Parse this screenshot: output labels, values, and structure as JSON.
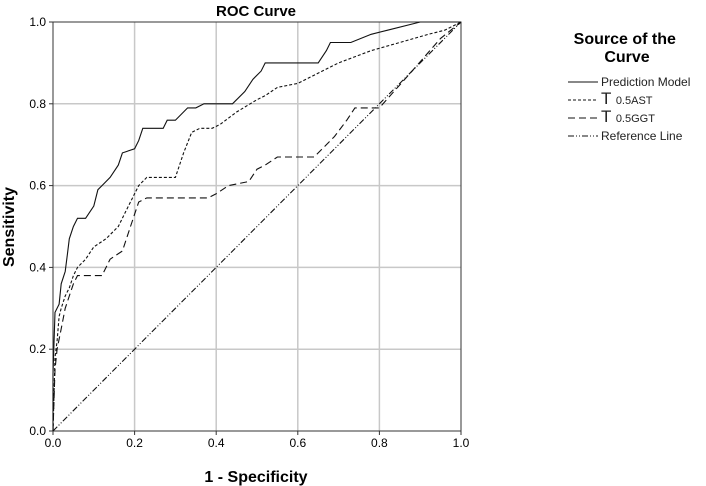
{
  "chart_data": {
    "type": "line",
    "title": "ROC Curve",
    "xlabel": "1 - Specificity",
    "ylabel": "Sensitivity",
    "xlim": [
      0,
      1
    ],
    "ylim": [
      0,
      1
    ],
    "x_ticks": [
      "0.0",
      "0.2",
      "0.4",
      "0.6",
      "0.8",
      "1.0"
    ],
    "y_ticks": [
      "0.0",
      "0.2",
      "0.4",
      "0.6",
      "0.8",
      "1.0"
    ],
    "grid": true,
    "legend": {
      "title": "Source of the Curve",
      "title_lines": [
        "Source of the",
        "Curve"
      ],
      "placement": "right"
    },
    "series": [
      {
        "name": "Prediction Model",
        "legend_main": "Prediction Model",
        "legend_sub": "",
        "dash": "solid",
        "points": [
          [
            0,
            0
          ],
          [
            0,
            0.14
          ],
          [
            0.005,
            0.29
          ],
          [
            0.015,
            0.31
          ],
          [
            0.02,
            0.36
          ],
          [
            0.03,
            0.39
          ],
          [
            0.035,
            0.43
          ],
          [
            0.04,
            0.47
          ],
          [
            0.05,
            0.5
          ],
          [
            0.06,
            0.52
          ],
          [
            0.08,
            0.52
          ],
          [
            0.1,
            0.55
          ],
          [
            0.11,
            0.59
          ],
          [
            0.12,
            0.6
          ],
          [
            0.14,
            0.62
          ],
          [
            0.16,
            0.65
          ],
          [
            0.17,
            0.68
          ],
          [
            0.2,
            0.69
          ],
          [
            0.21,
            0.71
          ],
          [
            0.22,
            0.74
          ],
          [
            0.27,
            0.74
          ],
          [
            0.28,
            0.76
          ],
          [
            0.3,
            0.76
          ],
          [
            0.33,
            0.79
          ],
          [
            0.35,
            0.79
          ],
          [
            0.37,
            0.8
          ],
          [
            0.44,
            0.8
          ],
          [
            0.47,
            0.83
          ],
          [
            0.49,
            0.86
          ],
          [
            0.51,
            0.88
          ],
          [
            0.52,
            0.9
          ],
          [
            0.65,
            0.9
          ],
          [
            0.67,
            0.93
          ],
          [
            0.68,
            0.95
          ],
          [
            0.73,
            0.95
          ],
          [
            0.78,
            0.97
          ],
          [
            0.82,
            0.98
          ],
          [
            0.9,
            1.0
          ],
          [
            1.0,
            1.0
          ]
        ]
      },
      {
        "name": "T 0.5AST",
        "legend_main": "T",
        "legend_sub": "0.5AST",
        "dash": "3,2",
        "points": [
          [
            0,
            0
          ],
          [
            0.005,
            0.18
          ],
          [
            0.01,
            0.22
          ],
          [
            0.015,
            0.28
          ],
          [
            0.02,
            0.3
          ],
          [
            0.03,
            0.33
          ],
          [
            0.04,
            0.35
          ],
          [
            0.05,
            0.38
          ],
          [
            0.06,
            0.4
          ],
          [
            0.08,
            0.42
          ],
          [
            0.1,
            0.45
          ],
          [
            0.13,
            0.47
          ],
          [
            0.16,
            0.5
          ],
          [
            0.18,
            0.54
          ],
          [
            0.21,
            0.6
          ],
          [
            0.23,
            0.62
          ],
          [
            0.3,
            0.62
          ],
          [
            0.32,
            0.68
          ],
          [
            0.34,
            0.73
          ],
          [
            0.36,
            0.74
          ],
          [
            0.39,
            0.74
          ],
          [
            0.41,
            0.75
          ],
          [
            0.45,
            0.78
          ],
          [
            0.5,
            0.81
          ],
          [
            0.52,
            0.82
          ],
          [
            0.55,
            0.84
          ],
          [
            0.6,
            0.85
          ],
          [
            0.64,
            0.87
          ],
          [
            0.7,
            0.9
          ],
          [
            0.78,
            0.93
          ],
          [
            0.85,
            0.95
          ],
          [
            0.92,
            0.97
          ],
          [
            0.96,
            0.98
          ],
          [
            1.0,
            1.0
          ]
        ]
      },
      {
        "name": "T 0.5GGT",
        "legend_main": "T",
        "legend_sub": "0.5GGT",
        "dash": "7,4",
        "points": [
          [
            0,
            0
          ],
          [
            0.005,
            0.15
          ],
          [
            0.01,
            0.2
          ],
          [
            0.02,
            0.25
          ],
          [
            0.03,
            0.3
          ],
          [
            0.04,
            0.33
          ],
          [
            0.05,
            0.36
          ],
          [
            0.06,
            0.38
          ],
          [
            0.12,
            0.38
          ],
          [
            0.14,
            0.42
          ],
          [
            0.17,
            0.44
          ],
          [
            0.19,
            0.5
          ],
          [
            0.21,
            0.56
          ],
          [
            0.23,
            0.57
          ],
          [
            0.38,
            0.57
          ],
          [
            0.4,
            0.58
          ],
          [
            0.43,
            0.6
          ],
          [
            0.48,
            0.61
          ],
          [
            0.5,
            0.64
          ],
          [
            0.52,
            0.65
          ],
          [
            0.55,
            0.67
          ],
          [
            0.64,
            0.67
          ],
          [
            0.66,
            0.69
          ],
          [
            0.69,
            0.72
          ],
          [
            0.72,
            0.76
          ],
          [
            0.74,
            0.79
          ],
          [
            0.8,
            0.79
          ],
          [
            0.88,
            0.88
          ],
          [
            0.95,
            0.96
          ],
          [
            1.0,
            1.0
          ]
        ]
      },
      {
        "name": "Reference Line",
        "legend_main": "Reference Line",
        "legend_sub": "",
        "dash": "6,2,1,2,1,2",
        "points": [
          [
            0,
            0
          ],
          [
            1,
            1
          ]
        ]
      }
    ]
  }
}
